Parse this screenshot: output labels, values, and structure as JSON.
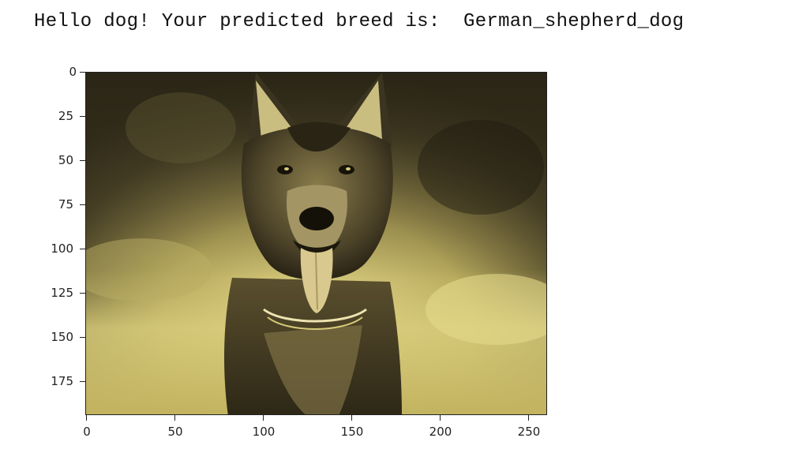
{
  "output": {
    "line": "Hello dog! Your predicted breed is:  German_shepherd_dog"
  },
  "figure": {
    "image_subject": "german-shepherd-dog-photo",
    "tint_colors": {
      "dark": "#2a2415",
      "mid": "#6b6238",
      "light": "#d8cc7a",
      "highlight": "#f0e7b2"
    }
  },
  "chart_data": {
    "type": "image",
    "xlim": [
      0,
      260
    ],
    "ylim": [
      195,
      0
    ],
    "x_ticks": [
      "0",
      "50",
      "100",
      "150",
      "200",
      "250"
    ],
    "y_ticks": [
      "0",
      "25",
      "50",
      "75",
      "100",
      "125",
      "150",
      "175"
    ]
  }
}
